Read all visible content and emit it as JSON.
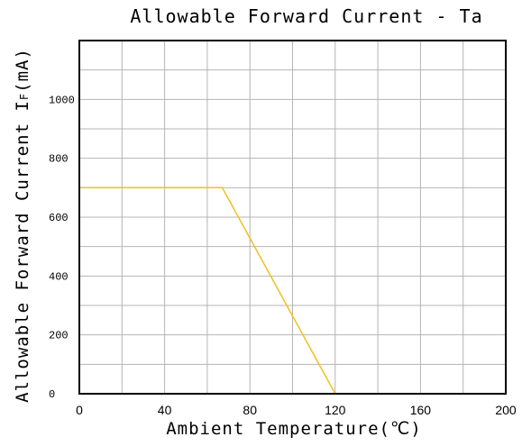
{
  "chart_data": {
    "type": "line",
    "title": "Allowable Forward Current - Ta",
    "xlabel": "Ambient Temperature(℃)",
    "ylabel_main": "Allowable Forward Current I",
    "ylabel_sub": "F",
    "ylabel_unit": "(mA)",
    "xlim": [
      0,
      200
    ],
    "ylim": [
      0,
      1200
    ],
    "x_ticks": [
      "0",
      "40",
      "80",
      "120",
      "160",
      "200"
    ],
    "y_ticks": [
      "0",
      "200",
      "400",
      "600",
      "800",
      "1000"
    ],
    "grid": true,
    "series": [
      {
        "color": "#f0c020",
        "points": [
          {
            "x": 0,
            "y": 700
          },
          {
            "x": 67,
            "y": 700
          },
          {
            "x": 120,
            "y": 0
          }
        ]
      }
    ]
  }
}
